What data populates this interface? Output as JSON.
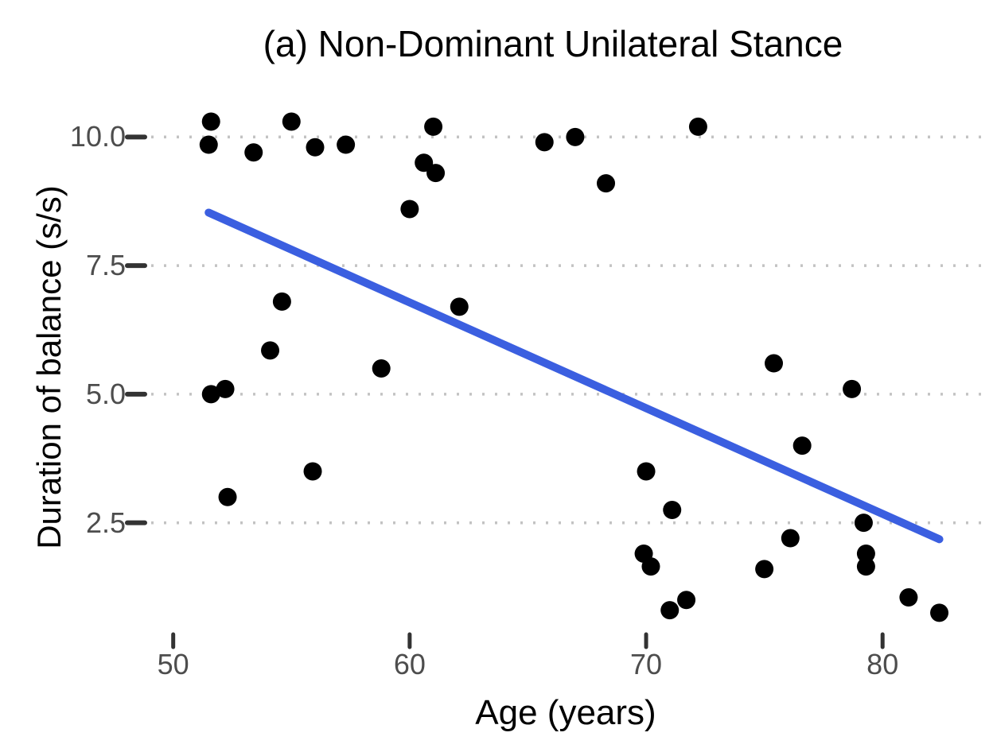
{
  "chart_data": {
    "type": "scatter",
    "title": "(a) Non-Dominant Unilateral Stance",
    "xlabel": "Age (years)",
    "ylabel": "Duration of balance (s/s)",
    "x_ticks": [
      50,
      60,
      70,
      80
    ],
    "y_ticks": [
      2.5,
      5.0,
      7.5,
      10.0
    ],
    "y_tick_labels": [
      "2.5",
      "5.0",
      "7.5",
      "10.0"
    ],
    "x_tick_labels": [
      "50",
      "60",
      "70",
      "80"
    ],
    "xlim": [
      48.9,
      84.3
    ],
    "ylim": [
      0.3,
      10.5
    ],
    "grid": "horizontal-dotted",
    "legend": "none",
    "grid_color": "#c3c3c3",
    "point_color": "#000000",
    "tick_color": "#333333",
    "trend_line": {
      "type": "linear-fit",
      "x1": 51.5,
      "y1": 8.53,
      "x2": 82.4,
      "y2": 2.18,
      "color": "#3B5FE0"
    },
    "points": [
      [
        51.6,
        10.3
      ],
      [
        51.5,
        9.85
      ],
      [
        53.4,
        9.7
      ],
      [
        55.0,
        10.3
      ],
      [
        56.0,
        9.8
      ],
      [
        57.3,
        9.85
      ],
      [
        60.0,
        8.6
      ],
      [
        60.6,
        9.5
      ],
      [
        61.0,
        10.2
      ],
      [
        61.1,
        9.3
      ],
      [
        65.7,
        9.9
      ],
      [
        67.0,
        10.0
      ],
      [
        68.3,
        9.1
      ],
      [
        72.2,
        10.2
      ],
      [
        54.6,
        6.8
      ],
      [
        62.1,
        6.7
      ],
      [
        54.1,
        5.85
      ],
      [
        58.8,
        5.5
      ],
      [
        51.6,
        5.0
      ],
      [
        52.2,
        5.1
      ],
      [
        75.4,
        5.6
      ],
      [
        78.7,
        5.1
      ],
      [
        52.3,
        3.0
      ],
      [
        55.9,
        3.5
      ],
      [
        70.0,
        3.5
      ],
      [
        71.1,
        2.75
      ],
      [
        76.6,
        4.0
      ],
      [
        79.2,
        2.5
      ],
      [
        76.1,
        2.2
      ],
      [
        69.9,
        1.9
      ],
      [
        70.2,
        1.65
      ],
      [
        75.0,
        1.6
      ],
      [
        79.3,
        1.9
      ],
      [
        79.3,
        1.65
      ],
      [
        71.7,
        1.0
      ],
      [
        71.0,
        0.8
      ],
      [
        81.1,
        1.05
      ],
      [
        82.4,
        0.75
      ]
    ]
  }
}
